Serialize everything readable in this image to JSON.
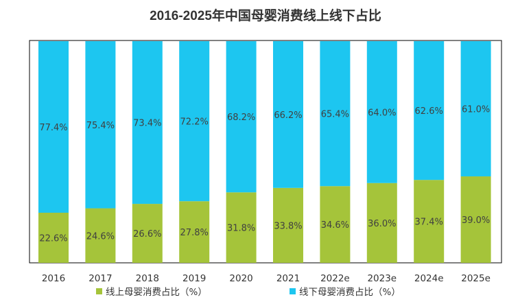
{
  "chart_data": {
    "type": "bar",
    "stacked": true,
    "title": "2016-2025年中国母婴消费线上线下占比",
    "categories": [
      "2016",
      "2017",
      "2018",
      "2019",
      "2020",
      "2021",
      "2022e",
      "2023e",
      "2024e",
      "2025e"
    ],
    "series": [
      {
        "name": "线上母婴消费占比（%）",
        "color": "#a5c43a",
        "values": [
          22.6,
          24.6,
          26.6,
          27.8,
          31.8,
          33.8,
          34.6,
          36.0,
          37.4,
          39.0
        ],
        "labels": [
          "22.6%",
          "24.6%",
          "26.6%",
          "27.8%",
          "31.8%",
          "33.8%",
          "34.6%",
          "36.0%",
          "37.4%",
          "39.0%"
        ]
      },
      {
        "name": "线下母婴消费占比（%）",
        "color": "#1dc6f0",
        "values": [
          77.4,
          75.4,
          73.4,
          72.2,
          68.2,
          66.2,
          65.4,
          64.0,
          62.6,
          61.0
        ],
        "labels": [
          "77.4%",
          "75.4%",
          "73.4%",
          "72.2%",
          "68.2%",
          "66.2%",
          "65.4%",
          "64.0%",
          "62.6%",
          "61.0%"
        ]
      }
    ],
    "ylim": [
      0,
      100
    ],
    "xlabel": "",
    "ylabel": "",
    "grid": false,
    "legend_position": "bottom"
  }
}
